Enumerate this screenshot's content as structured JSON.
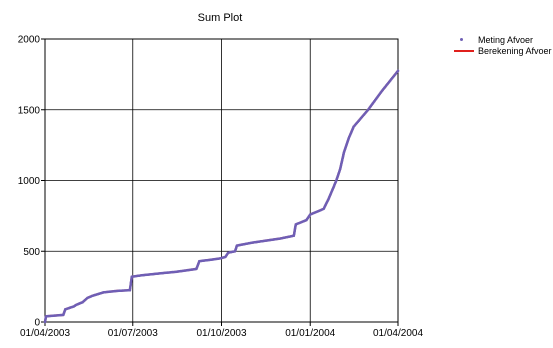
{
  "chart_data": {
    "type": "line",
    "title": "Sum Plot",
    "xlabel": "",
    "ylabel": "",
    "x_ticks": [
      "01/04/2003",
      "01/07/2003",
      "01/10/2003",
      "01/01/2004",
      "01/04/2004"
    ],
    "xlim": [
      "2003-04-01",
      "2004-04-01"
    ],
    "ylim": [
      0,
      2000
    ],
    "y_ticks": [
      0,
      500,
      1000,
      1500,
      2000
    ],
    "grid": true,
    "legend_position": "top-right, outside plot",
    "series": [
      {
        "name": "Meting Afvoer",
        "style": "markers",
        "color": "#6f5fb5",
        "x": [
          "2003-04-01",
          "2003-04-02",
          "2003-04-20",
          "2003-04-22",
          "2003-05-01",
          "2003-05-03",
          "2003-05-10",
          "2003-05-15",
          "2003-05-20",
          "2003-06-01",
          "2003-06-15",
          "2003-06-28",
          "2003-06-30",
          "2003-07-10",
          "2003-07-31",
          "2003-08-15",
          "2003-08-31",
          "2003-09-05",
          "2003-09-08",
          "2003-09-20",
          "2003-09-30",
          "2003-10-05",
          "2003-10-08",
          "2003-10-15",
          "2003-10-17",
          "2003-11-01",
          "2003-12-01",
          "2003-12-15",
          "2003-12-17",
          "2003-12-28",
          "2004-01-01",
          "2004-01-10",
          "2004-01-15",
          "2004-01-20",
          "2004-01-25",
          "2004-01-28",
          "2004-02-01",
          "2004-02-05",
          "2004-02-10",
          "2004-02-15",
          "2004-03-01",
          "2004-03-15",
          "2004-04-01"
        ],
        "y": [
          0,
          40,
          50,
          90,
          110,
          120,
          140,
          170,
          185,
          210,
          220,
          225,
          320,
          330,
          345,
          355,
          370,
          375,
          430,
          440,
          450,
          460,
          490,
          500,
          540,
          560,
          590,
          610,
          690,
          720,
          760,
          785,
          800,
          870,
          950,
          1000,
          1080,
          1200,
          1300,
          1380,
          1500,
          1630,
          1775
        ]
      },
      {
        "name": "Berekening Afvoer",
        "style": "line",
        "color": "#e0201c",
        "x": [
          "2003-04-01",
          "2003-04-02",
          "2003-04-20",
          "2003-04-22",
          "2003-05-01",
          "2003-05-03",
          "2003-05-10",
          "2003-05-15",
          "2003-05-20",
          "2003-06-01",
          "2003-06-15",
          "2003-06-28",
          "2003-06-30",
          "2003-07-10",
          "2003-07-31",
          "2003-08-15",
          "2003-08-31",
          "2003-09-05",
          "2003-09-08",
          "2003-09-20",
          "2003-09-30",
          "2003-10-05",
          "2003-10-08",
          "2003-10-15",
          "2003-10-17",
          "2003-11-01",
          "2003-12-01",
          "2003-12-15",
          "2003-12-17",
          "2003-12-28",
          "2004-01-01",
          "2004-01-10",
          "2004-01-15",
          "2004-01-20",
          "2004-01-25",
          "2004-01-28",
          "2004-02-01",
          "2004-02-05",
          "2004-02-10",
          "2004-02-15",
          "2004-03-01",
          "2004-03-15",
          "2004-04-01"
        ],
        "y": [
          0,
          40,
          50,
          90,
          110,
          120,
          140,
          170,
          185,
          210,
          220,
          225,
          320,
          330,
          345,
          355,
          370,
          375,
          430,
          440,
          450,
          460,
          490,
          500,
          540,
          560,
          590,
          610,
          690,
          720,
          760,
          785,
          800,
          870,
          950,
          1000,
          1080,
          1200,
          1300,
          1380,
          1500,
          1630,
          1775
        ]
      }
    ]
  }
}
